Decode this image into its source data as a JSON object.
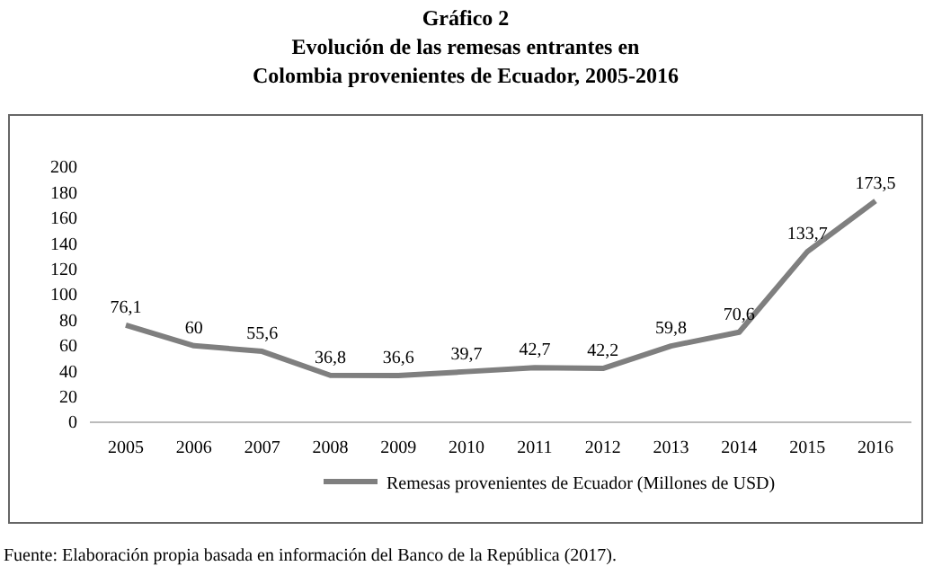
{
  "chart_data": {
    "type": "line",
    "title": "Gráfico 2",
    "subtitle": "Evolución de las remesas entrantes en Colombia provenientes de Ecuador, 2005-2016",
    "categories": [
      "2005",
      "2006",
      "2007",
      "2008",
      "2009",
      "2010",
      "2011",
      "2012",
      "2013",
      "2014",
      "2015",
      "2016"
    ],
    "series": [
      {
        "name": "Remesas provenientes de Ecuador (Millones de USD)",
        "color": "#7f7f7f",
        "values": [
          76.1,
          60,
          55.6,
          36.8,
          36.6,
          39.7,
          42.7,
          42.2,
          59.8,
          70.6,
          133.7,
          173.5
        ],
        "value_labels": [
          "76,1",
          "60",
          "55,6",
          "36,8",
          "36,6",
          "39,7",
          "42,7",
          "42,2",
          "59,8",
          "70,6",
          "133,7",
          "173,5"
        ]
      }
    ],
    "ylim": [
      0,
      200
    ],
    "yticks": [
      0,
      20,
      40,
      60,
      80,
      100,
      120,
      140,
      160,
      180,
      200
    ],
    "legend": "bottom",
    "marker": "none",
    "line_style": "solid",
    "annotations": [
      "Fuente: Elaboración propia basada en información del Banco de la República (2017)."
    ]
  }
}
